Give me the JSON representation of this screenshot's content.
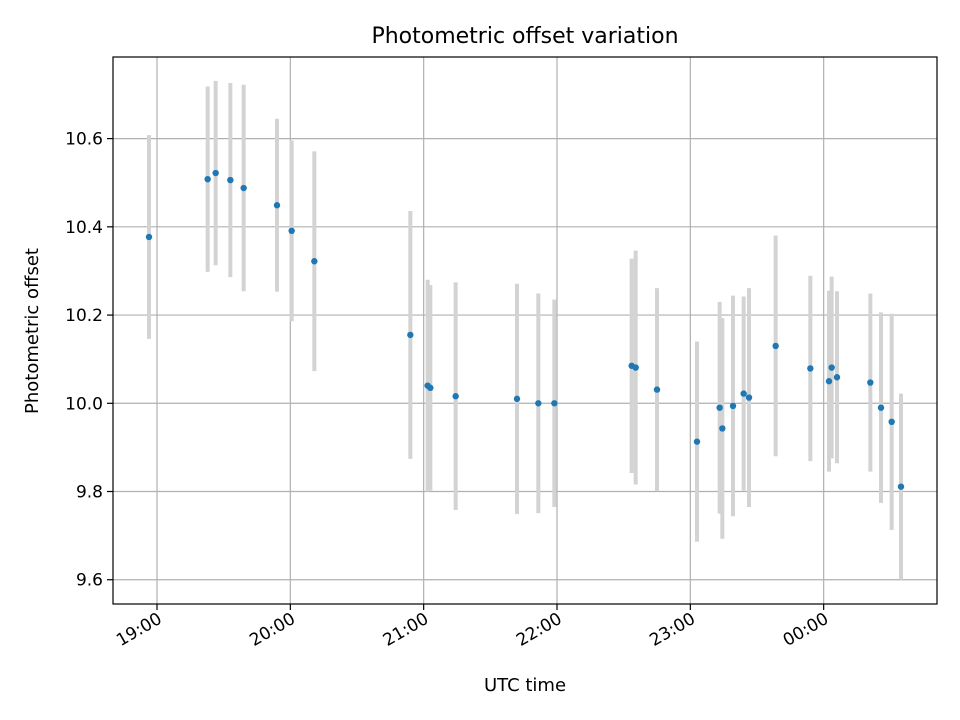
{
  "chart_data": {
    "type": "scatter",
    "title": "Photometric offset variation",
    "xlabel": "UTC time",
    "ylabel": "Photometric offset",
    "x_unit": "hours",
    "xlim": [
      18.67,
      24.85
    ],
    "ylim": [
      9.545,
      10.785
    ],
    "grid": true,
    "legend": "none",
    "x_ticks": [
      {
        "value": 19,
        "label": "19:00"
      },
      {
        "value": 20,
        "label": "20:00"
      },
      {
        "value": 21,
        "label": "21:00"
      },
      {
        "value": 22,
        "label": "22:00"
      },
      {
        "value": 23,
        "label": "23:00"
      },
      {
        "value": 24,
        "label": "00:00"
      }
    ],
    "y_ticks": [
      {
        "value": 9.6,
        "label": "9.6"
      },
      {
        "value": 9.8,
        "label": "9.8"
      },
      {
        "value": 10.0,
        "label": "10.0"
      },
      {
        "value": 10.2,
        "label": "10.2"
      },
      {
        "value": 10.4,
        "label": "10.4"
      },
      {
        "value": 10.6,
        "label": "10.6"
      }
    ],
    "colors": {
      "marker": "#1f77b4",
      "errorbar": "#d3d3d3",
      "grid": "#b0b0b0"
    },
    "points": [
      {
        "x": 18.94,
        "y": 10.377,
        "err": 0.231
      },
      {
        "x": 19.38,
        "y": 10.508,
        "err": 0.21
      },
      {
        "x": 19.44,
        "y": 10.522,
        "err": 0.209
      },
      {
        "x": 19.55,
        "y": 10.506,
        "err": 0.22
      },
      {
        "x": 19.65,
        "y": 10.488,
        "err": 0.234
      },
      {
        "x": 19.9,
        "y": 10.449,
        "err": 0.196
      },
      {
        "x": 20.01,
        "y": 10.391,
        "err": 0.205
      },
      {
        "x": 20.18,
        "y": 10.322,
        "err": 0.249
      },
      {
        "x": 20.9,
        "y": 10.155,
        "err": 0.281
      },
      {
        "x": 21.03,
        "y": 10.04,
        "err": 0.24
      },
      {
        "x": 21.05,
        "y": 10.035,
        "err": 0.233
      },
      {
        "x": 21.24,
        "y": 10.016,
        "err": 0.258
      },
      {
        "x": 21.7,
        "y": 10.01,
        "err": 0.261
      },
      {
        "x": 21.86,
        "y": 10.0,
        "err": 0.249
      },
      {
        "x": 21.98,
        "y": 10.0,
        "err": 0.235
      },
      {
        "x": 22.56,
        "y": 10.085,
        "err": 0.243
      },
      {
        "x": 22.59,
        "y": 10.081,
        "err": 0.265
      },
      {
        "x": 22.75,
        "y": 10.031,
        "err": 0.23
      },
      {
        "x": 23.05,
        "y": 9.913,
        "err": 0.227
      },
      {
        "x": 23.22,
        "y": 9.99,
        "err": 0.24
      },
      {
        "x": 23.24,
        "y": 9.943,
        "err": 0.25
      },
      {
        "x": 23.32,
        "y": 9.994,
        "err": 0.25
      },
      {
        "x": 23.4,
        "y": 10.022,
        "err": 0.22
      },
      {
        "x": 23.44,
        "y": 10.013,
        "err": 0.248
      },
      {
        "x": 23.64,
        "y": 10.13,
        "err": 0.25
      },
      {
        "x": 23.9,
        "y": 10.079,
        "err": 0.21
      },
      {
        "x": 24.04,
        "y": 10.05,
        "err": 0.205
      },
      {
        "x": 24.06,
        "y": 10.081,
        "err": 0.206
      },
      {
        "x": 24.1,
        "y": 10.059,
        "err": 0.195
      },
      {
        "x": 24.35,
        "y": 10.047,
        "err": 0.202
      },
      {
        "x": 24.43,
        "y": 9.99,
        "err": 0.216
      },
      {
        "x": 24.51,
        "y": 9.958,
        "err": 0.245
      },
      {
        "x": 24.58,
        "y": 9.811,
        "err": 0.211
      }
    ]
  }
}
